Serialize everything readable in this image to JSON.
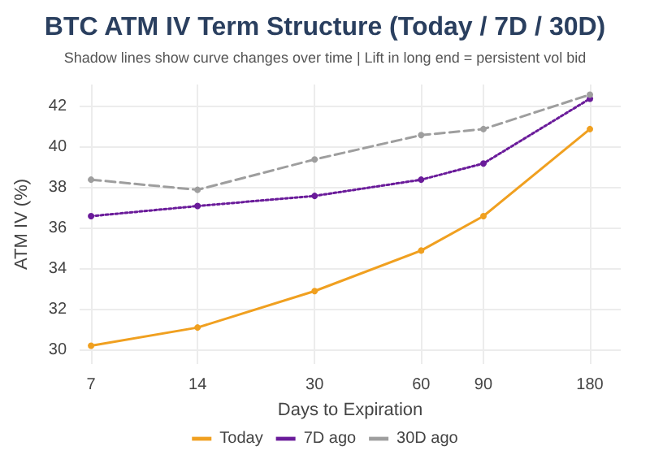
{
  "chart_data": {
    "type": "line",
    "title": "BTC ATM IV Term Structure (Today / 7D / 30D)",
    "subtitle": "Shadow lines show curve changes over time | Lift in long end = persistent vol bid",
    "xlabel": "Days to Expiration",
    "ylabel": "ATM IV (%)",
    "x": [
      7,
      14,
      30,
      60,
      90,
      180
    ],
    "series": [
      {
        "name": "Today",
        "color": "#f0a020",
        "line_style": "solid",
        "values": [
          30.2,
          31.1,
          32.9,
          34.9,
          36.6,
          40.9
        ]
      },
      {
        "name": "7D ago",
        "color": "#6a1b9a",
        "line_style": "dotted",
        "values": [
          36.6,
          37.1,
          37.6,
          38.4,
          39.2,
          42.4
        ]
      },
      {
        "name": "30D ago",
        "color": "#9e9e9e",
        "line_style": "dashed",
        "values": [
          38.4,
          37.9,
          39.4,
          40.6,
          40.9,
          42.6
        ]
      }
    ],
    "log": "x",
    "xlim": [
      6.5,
      220
    ],
    "xticks": [
      7,
      14,
      30,
      60,
      90,
      180
    ],
    "ylim": [
      29.3,
      43.1
    ],
    "yticks": [
      30,
      32,
      34,
      36,
      38,
      40,
      42
    ],
    "grid": true,
    "legend": "bottom",
    "marker": "circle"
  }
}
